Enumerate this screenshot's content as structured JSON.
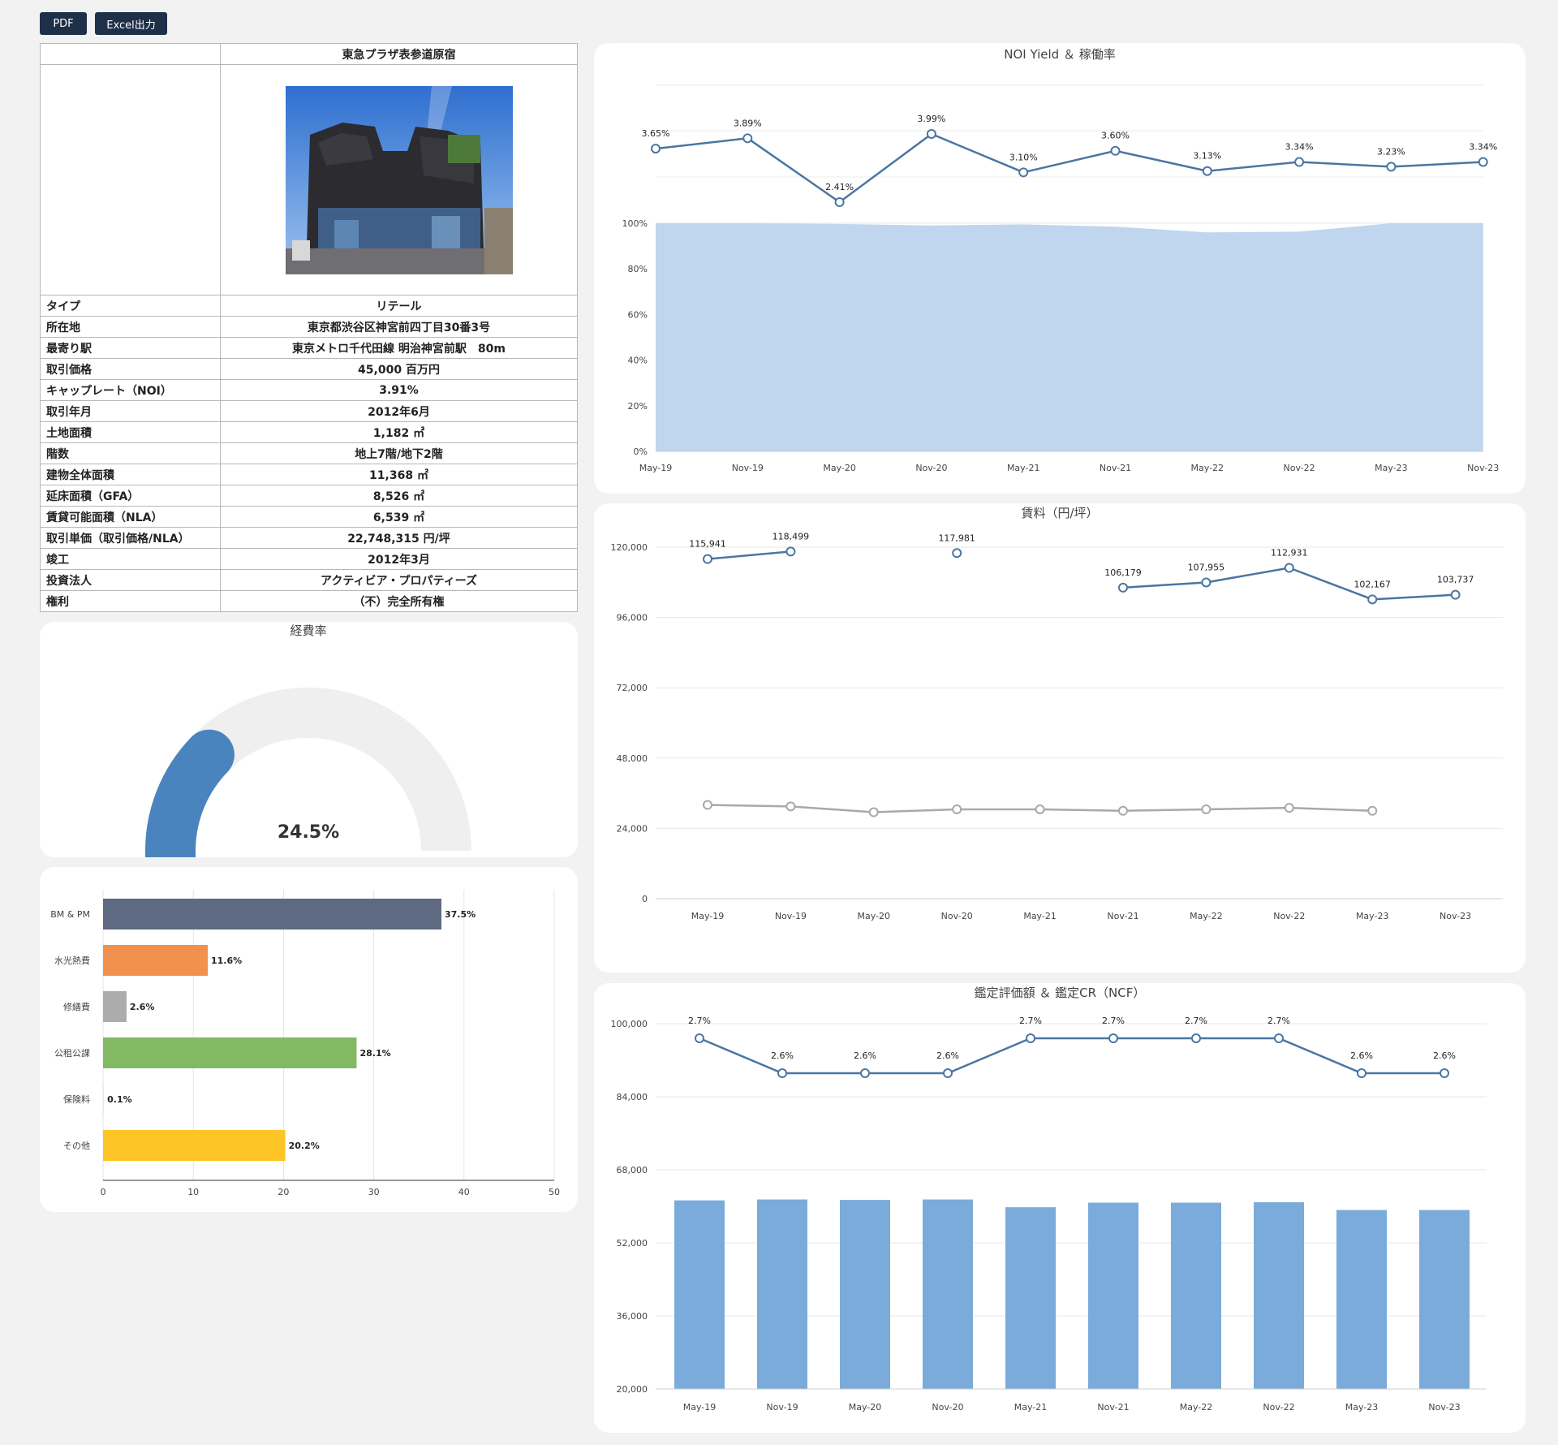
{
  "toolbar": {
    "pdf_label": "PDF",
    "excel_label": "Excel出力"
  },
  "property": {
    "name": "東急プラザ表参道原宿",
    "rows": [
      {
        "key": "タイプ",
        "value": "リテール"
      },
      {
        "key": "所在地",
        "value": "東京都渋谷区神宮前四丁目30番3号"
      },
      {
        "key": "最寄り駅",
        "value": "東京メトロ千代田線 明治神宮前駅　80m"
      },
      {
        "key": "取引価格",
        "value": "45,000 百万円"
      },
      {
        "key": "キャップレート（NOI）",
        "value": "3.91%"
      },
      {
        "key": "取引年月",
        "value": "2012年6月"
      },
      {
        "key": "土地面積",
        "value": "1,182 ㎡"
      },
      {
        "key": "階数",
        "value": "地上7階/地下2階"
      },
      {
        "key": "建物全体面積",
        "value": "11,368 ㎡"
      },
      {
        "key": "延床面積（GFA）",
        "value": "8,526 ㎡"
      },
      {
        "key": "賃貸可能面積（NLA）",
        "value": "6,539 ㎡"
      },
      {
        "key": "取引単価（取引価格/NLA）",
        "value": "22,748,315 円/坪"
      },
      {
        "key": "竣工",
        "value": "2012年3月"
      },
      {
        "key": "投資法人",
        "value": "アクティビア・プロパティーズ"
      },
      {
        "key": "権利",
        "value": "（不）完全所有権"
      }
    ]
  },
  "colors": {
    "line": "#4a76a3",
    "area": "#bfd6ee",
    "bar": "#7aabdb",
    "gray_line": "#a9a9a9",
    "gauge_fill": "#4a84be",
    "gauge_track": "#efefef"
  },
  "chart_data": [
    {
      "id": "noi",
      "type": "line",
      "title": "NOI Yield ＆ 稼働率",
      "categories": [
        "May-19",
        "Nov-19",
        "May-20",
        "Nov-20",
        "May-21",
        "Nov-21",
        "May-22",
        "Nov-22",
        "May-23",
        "Nov-23"
      ],
      "series": [
        {
          "values": [
            3.65,
            3.89,
            2.41,
            3.99,
            3.1,
            3.6,
            3.13,
            3.34,
            3.23,
            3.34
          ],
          "labels": [
            "3.65%",
            "3.89%",
            "2.41%",
            "3.99%",
            "3.10%",
            "3.60%",
            "3.13%",
            "3.34%",
            "3.23%",
            "3.34%"
          ]
        },
        {
          "type": "area",
          "values": [
            100,
            100,
            99.7,
            99,
            99.5,
            98.5,
            96,
            96.3,
            100,
            100
          ]
        }
      ],
      "y2_ticks": [
        "0%",
        "20%",
        "40%",
        "60%",
        "80%",
        "100%"
      ],
      "y2lim": [
        0,
        100
      ],
      "grid": true
    },
    {
      "id": "rent",
      "type": "line",
      "title": "賃料（円/坪）",
      "categories": [
        "May-19",
        "Nov-19",
        "May-20",
        "Nov-20",
        "May-21",
        "Nov-21",
        "May-22",
        "Nov-22",
        "May-23",
        "Nov-23"
      ],
      "series": [
        {
          "values": [
            115941,
            118499,
            null,
            117981,
            null,
            106179,
            107955,
            112931,
            102167,
            103737
          ],
          "labels": [
            "115,941",
            "118,499",
            "",
            "117,981",
            "",
            "106,179",
            "107,955",
            "112,931",
            "102,167",
            "103,737"
          ]
        },
        {
          "values": [
            32000,
            31500,
            29500,
            30500,
            30500,
            30000,
            30500,
            31000,
            30000,
            null
          ]
        }
      ],
      "y_ticks": [
        "0",
        "24,000",
        "48,000",
        "72,000",
        "96,000",
        "120,000"
      ],
      "ylim": [
        0,
        120000
      ],
      "grid": true
    },
    {
      "id": "appraisal",
      "type": "bar",
      "title": "鑑定評価額 ＆ 鑑定CR（NCF）",
      "categories": [
        "May-19",
        "Nov-19",
        "May-20",
        "Nov-20",
        "May-21",
        "Nov-21",
        "May-22",
        "Nov-22",
        "May-23",
        "Nov-23"
      ],
      "series": [
        {
          "type": "bar",
          "values": [
            61300,
            61500,
            61400,
            61500,
            59800,
            60800,
            60800,
            60900,
            59200,
            59200
          ]
        },
        {
          "type": "line",
          "values": [
            2.7,
            2.6,
            2.6,
            2.6,
            2.7,
            2.7,
            2.7,
            2.7,
            2.6,
            2.6
          ],
          "labels": [
            "2.7%",
            "2.6%",
            "2.6%",
            "2.6%",
            "2.7%",
            "2.7%",
            "2.7%",
            "2.7%",
            "2.6%",
            "2.6%"
          ]
        }
      ],
      "y_ticks": [
        "20,000",
        "36,000",
        "52,000",
        "68,000",
        "84,000",
        "100,000"
      ],
      "ylim": [
        20000,
        100000
      ],
      "grid": true
    },
    {
      "id": "expense_ratio",
      "type": "gauge",
      "title": "経費率",
      "value": 24.5,
      "value_label": "24.5%"
    },
    {
      "id": "expense_breakdown",
      "type": "bar",
      "orientation": "horizontal",
      "categories": [
        "BM & PM",
        "水光熱費",
        "修繕費",
        "公租公課",
        "保険料",
        "その他"
      ],
      "values": [
        37.5,
        11.6,
        2.6,
        28.1,
        0.1,
        20.2
      ],
      "labels": [
        "37.5%",
        "11.6%",
        "2.6%",
        "28.1%",
        "0.1%",
        "20.2%"
      ],
      "colors": [
        "#5d6a82",
        "#f0914e",
        "#acacac",
        "#82b963",
        "#e9e9e9",
        "#fdc626"
      ],
      "x_ticks": [
        "0",
        "10",
        "20",
        "30",
        "40",
        "50"
      ],
      "xlim": [
        0,
        50
      ],
      "grid": true
    }
  ]
}
